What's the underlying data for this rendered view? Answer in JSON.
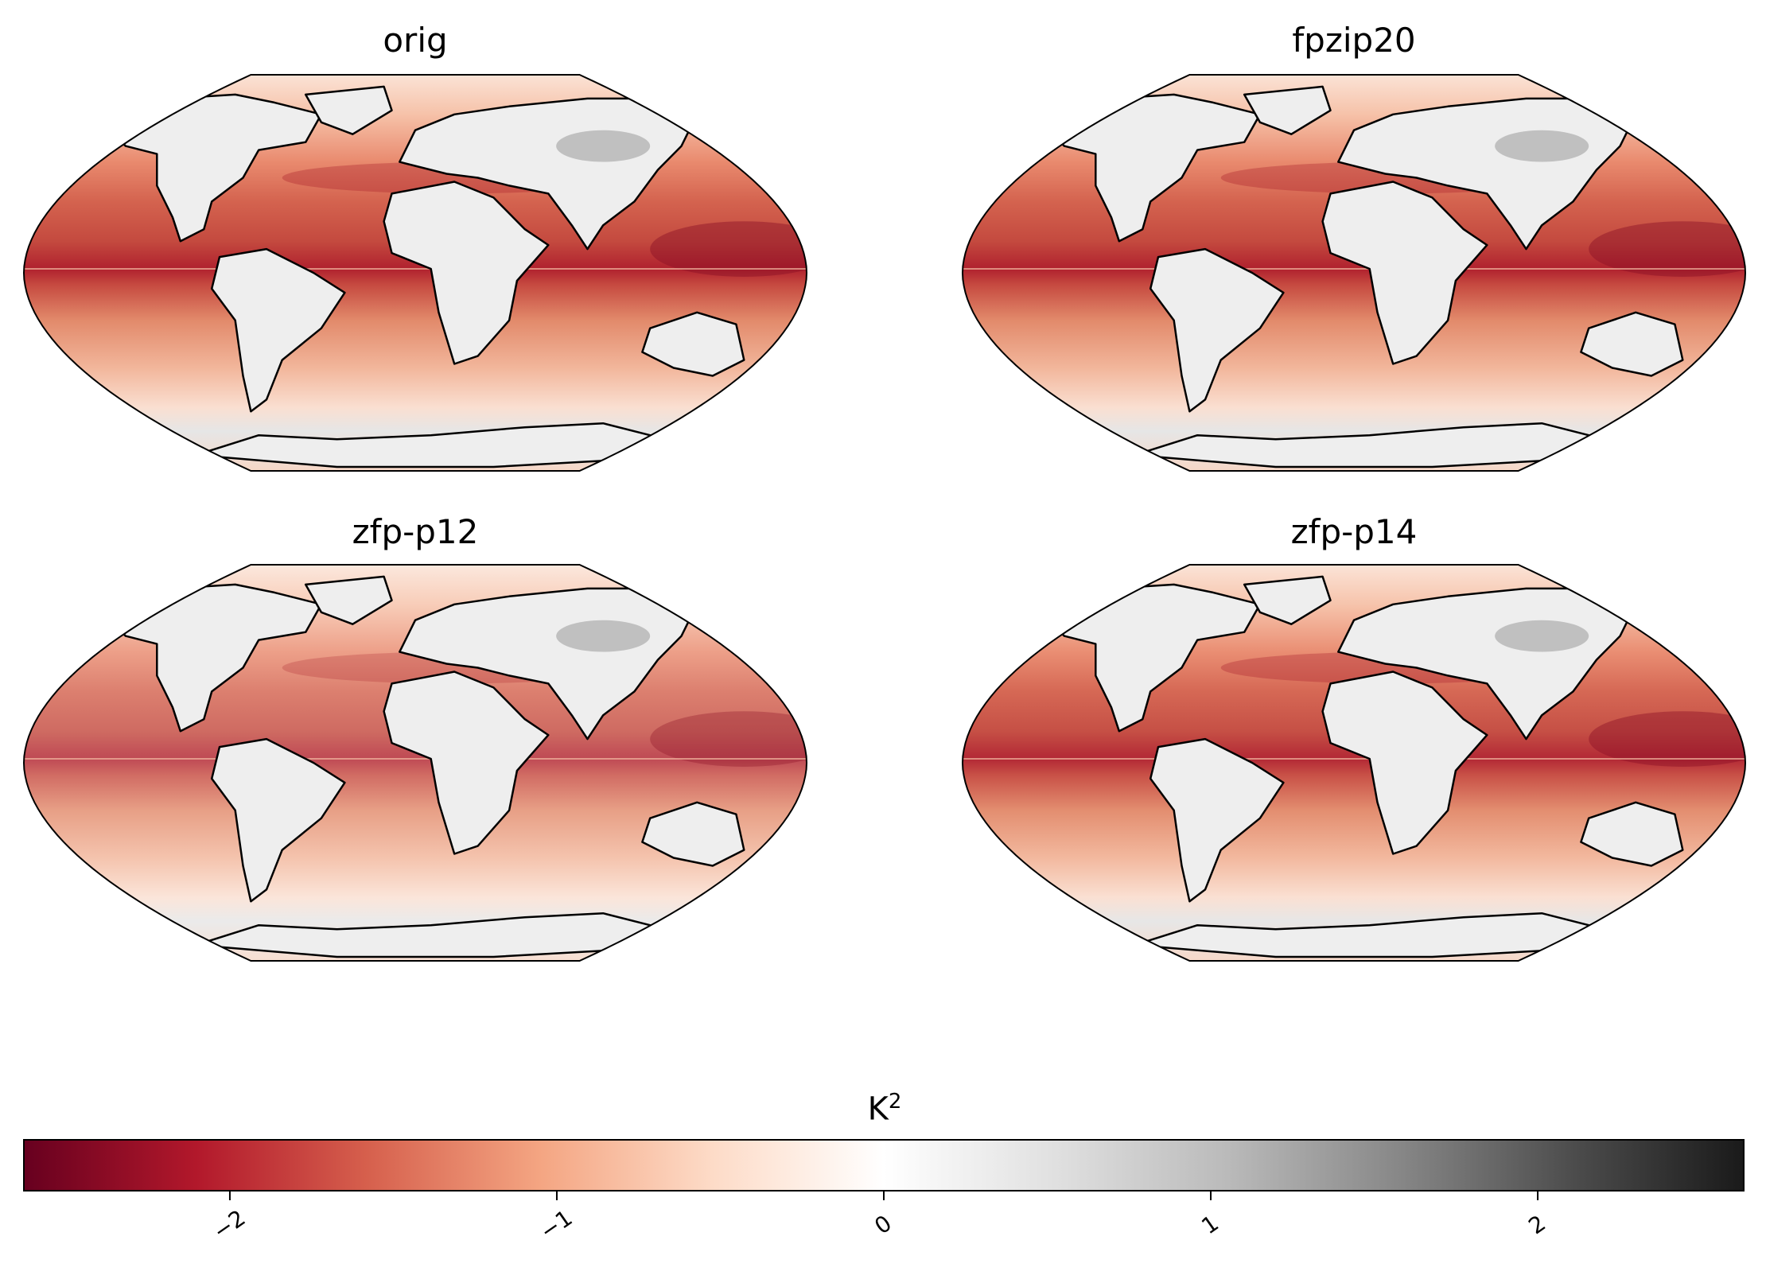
{
  "panels": [
    {
      "title": "orig",
      "intensity": 1.0
    },
    {
      "title": "fpzip20",
      "intensity": 1.0
    },
    {
      "title": "zfp-p12",
      "intensity": 0.72
    },
    {
      "title": "zfp-p14",
      "intensity": 0.95
    }
  ],
  "colorbar": {
    "label_base": "K",
    "label_exp": "2",
    "colormap": "RdGy",
    "range": [
      -2.63,
      2.63
    ],
    "ticks": [
      {
        "value": -2,
        "label": "−2"
      },
      {
        "value": -1,
        "label": "−1"
      },
      {
        "value": 0,
        "label": "0"
      },
      {
        "value": 1,
        "label": "1"
      },
      {
        "value": 2,
        "label": "2"
      }
    ],
    "stops": [
      "#67001f",
      "#b2182b",
      "#d6604d",
      "#f4a582",
      "#fddbc7",
      "#ffffff",
      "#e0e0e0",
      "#bababa",
      "#878787",
      "#4d4d4d",
      "#1a1a1a"
    ]
  }
}
